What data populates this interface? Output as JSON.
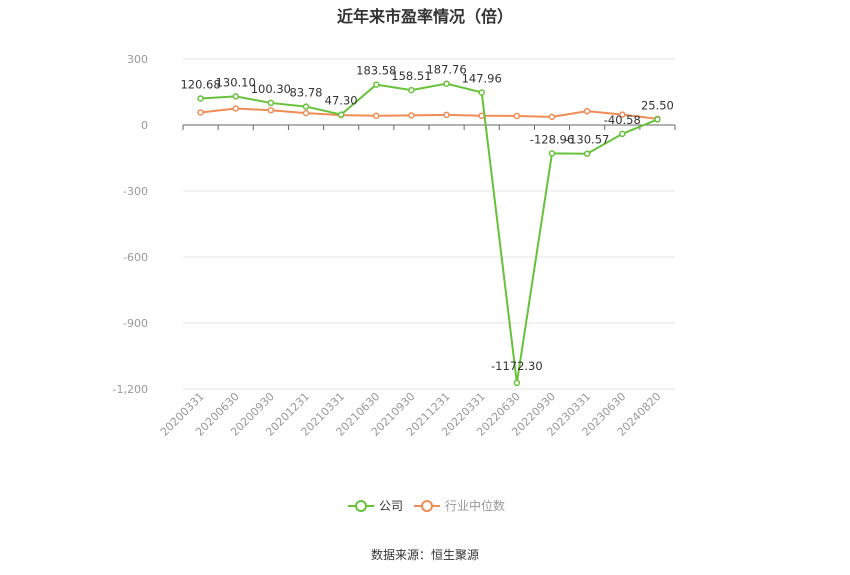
{
  "title": "近年来市盈率情况（倍）",
  "source": "数据来源：恒生聚源",
  "chart_data": {
    "type": "line",
    "categories": [
      "20200331",
      "20200630",
      "20200930",
      "20201231",
      "20210331",
      "20210630",
      "20210930",
      "20211231",
      "20220331",
      "20220630",
      "20220930",
      "20230331",
      "20230630",
      "20240820"
    ],
    "series": [
      {
        "name": "公司",
        "color": "#67c23a",
        "values": [
          120.68,
          130.1,
          100.3,
          83.78,
          47.3,
          183.58,
          158.51,
          187.76,
          147.96,
          -1172.3,
          -128.96,
          -130.57,
          -40.58,
          25.5
        ],
        "labels": [
          "120.68",
          "130.10",
          "100.30",
          "83.78",
          "47.30",
          "183.58",
          "158.51",
          "187.76",
          "147.96",
          "-1172.30",
          "-128.96",
          "-130.57",
          "-40.58",
          "25.50"
        ]
      },
      {
        "name": "行业中位数",
        "color": "#f08c55",
        "values": [
          57,
          75,
          67,
          54,
          45,
          42,
          44,
          46,
          42,
          41,
          37,
          63,
          47,
          28
        ]
      }
    ],
    "y_ticks": [
      300,
      0,
      -300,
      -600,
      -900,
      -1200
    ],
    "y_tick_labels": [
      "300",
      "0",
      "-300",
      "-600",
      "-900",
      "-1,200"
    ],
    "ylim": [
      -1200,
      300
    ],
    "grid": true,
    "legend_position": "bottom-center"
  }
}
